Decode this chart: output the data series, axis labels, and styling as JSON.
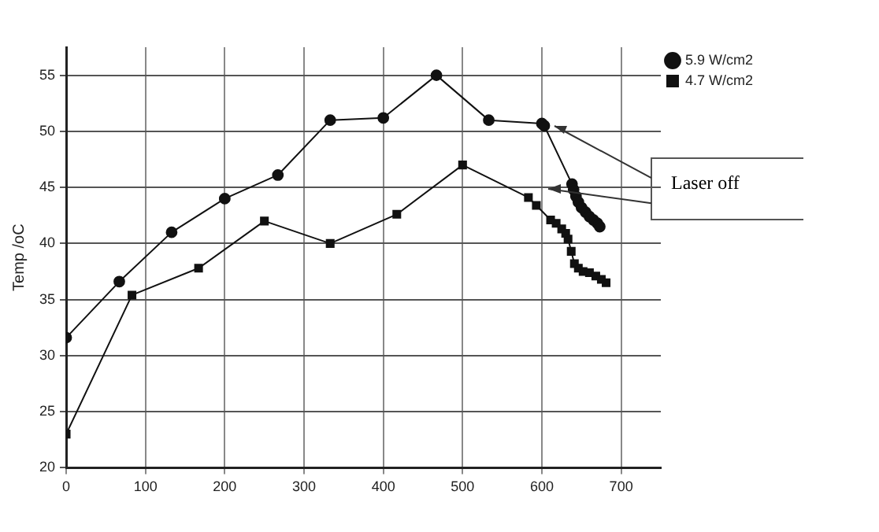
{
  "chart_data": {
    "type": "line",
    "ylabel": "Temp /oC",
    "xlim": [
      0,
      750
    ],
    "xticks": [
      0,
      100,
      200,
      300,
      400,
      500,
      600,
      700
    ],
    "ylim": [
      20,
      57.5
    ],
    "yticks": [
      20,
      25,
      30,
      35,
      40,
      45,
      50,
      55
    ],
    "grid": true,
    "legend": "top right",
    "line_style": "solid",
    "annotations": [
      {
        "text": "Laser off",
        "x": 603,
        "y": 50.5
      }
    ],
    "series": [
      {
        "name": "5.9 W/cm2",
        "color": "#111111",
        "marker": "circle",
        "x": [
          0,
          67,
          133,
          200,
          267,
          333,
          400,
          467,
          533,
          600,
          603,
          638,
          640,
          643,
          646,
          650,
          655,
          660,
          665,
          670,
          673
        ],
        "values": [
          31.6,
          36.6,
          41,
          44,
          46.1,
          51,
          51.2,
          55,
          51,
          50.7,
          50.5,
          45.3,
          44.8,
          44.2,
          43.7,
          43.2,
          42.8,
          42.4,
          42.1,
          41.8,
          41.5
        ]
      },
      {
        "name": "4.7 W/cm2",
        "color": "#111111",
        "marker": "square",
        "x": [
          0,
          83,
          167,
          250,
          333,
          417,
          500,
          583,
          593,
          611,
          618,
          625,
          630,
          633,
          637,
          641,
          646,
          652,
          660,
          668,
          675,
          681
        ],
        "values": [
          23,
          35.4,
          37.8,
          42,
          40,
          42.6,
          47,
          44.1,
          43.4,
          42.1,
          41.8,
          41.3,
          40.9,
          40.4,
          39.3,
          38.2,
          37.8,
          37.5,
          37.4,
          37.1,
          36.8,
          36.5
        ]
      }
    ]
  }
}
